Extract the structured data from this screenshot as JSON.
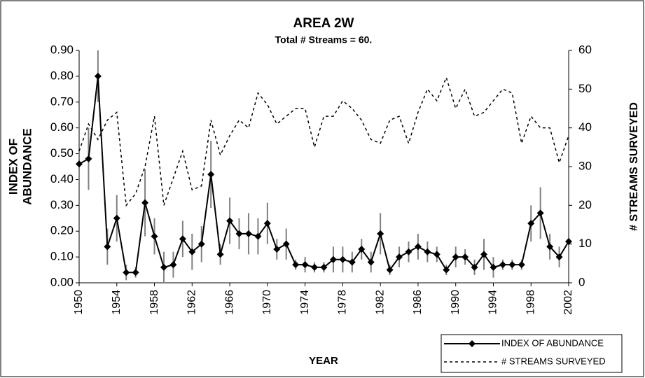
{
  "chart_data": {
    "type": "line",
    "title": "AREA 2W",
    "subtitle": "Total # Streams = 60.",
    "x_label": "YEAR",
    "y_label": [
      "INDEX OF",
      "ABUNDANCE"
    ],
    "y2_label": "# STREAMS SURVEYED",
    "x": [
      1950,
      1951,
      1952,
      1953,
      1954,
      1955,
      1956,
      1957,
      1958,
      1959,
      1960,
      1961,
      1962,
      1963,
      1964,
      1965,
      1966,
      1967,
      1968,
      1969,
      1970,
      1971,
      1972,
      1973,
      1974,
      1975,
      1976,
      1977,
      1978,
      1979,
      1980,
      1981,
      1982,
      1983,
      1984,
      1985,
      1986,
      1987,
      1988,
      1989,
      1990,
      1991,
      1992,
      1993,
      1994,
      1995,
      1996,
      1997,
      1998,
      1999,
      2000,
      2001,
      2002
    ],
    "xlim": [
      1950,
      2002
    ],
    "xticks": [
      1950,
      1954,
      1958,
      1962,
      1966,
      1970,
      1974,
      1978,
      1982,
      1986,
      1990,
      1994,
      1998,
      2002
    ],
    "ylim": [
      0,
      0.9
    ],
    "yticks": [
      {
        "value": 0,
        "label": "0.00"
      },
      {
        "value": 0.1,
        "label": "0.10"
      },
      {
        "value": 0.2,
        "label": "0.20"
      },
      {
        "value": 0.3,
        "label": "0.30"
      },
      {
        "value": 0.4,
        "label": "0.40"
      },
      {
        "value": 0.5,
        "label": "0.50"
      },
      {
        "value": 0.6,
        "label": "0.60"
      },
      {
        "value": 0.7,
        "label": "0.70"
      },
      {
        "value": 0.8,
        "label": "0.80"
      },
      {
        "value": 0.9,
        "label": "0.90"
      }
    ],
    "y2lim": [
      0,
      60
    ],
    "y2ticks": [
      0,
      10,
      20,
      30,
      40,
      50,
      60
    ],
    "legend": "bottom-right",
    "series": [
      {
        "name": "INDEX OF ABUNDANCE",
        "color": "#000000",
        "style": "solid",
        "marker": "diamond",
        "values": [
          0.46,
          0.48,
          0.8,
          0.14,
          0.25,
          0.04,
          0.04,
          0.31,
          0.18,
          0.06,
          0.07,
          0.17,
          0.12,
          0.15,
          0.42,
          0.11,
          0.24,
          0.19,
          0.19,
          0.18,
          0.23,
          0.13,
          0.15,
          0.07,
          0.07,
          0.06,
          0.06,
          0.09,
          0.09,
          0.08,
          0.13,
          0.08,
          0.19,
          0.05,
          0.1,
          0.12,
          0.14,
          0.12,
          0.11,
          0.05,
          0.1,
          0.1,
          0.06,
          0.11,
          0.06,
          0.07,
          0.07,
          0.07,
          0.23,
          0.27,
          0.14,
          0.1,
          0.16
        ],
        "errors": [
          0.15,
          0.12,
          0.1,
          0.07,
          0.09,
          0.03,
          0.02,
          0.13,
          0.07,
          0.06,
          0.05,
          0.07,
          0.07,
          0.07,
          0.13,
          0.04,
          0.09,
          0.06,
          0.08,
          0.07,
          0.08,
          0.04,
          0.06,
          0.02,
          0.03,
          0.02,
          0.02,
          0.05,
          0.05,
          0.04,
          0.04,
          0.04,
          0.08,
          0.02,
          0.04,
          0.04,
          0.05,
          0.04,
          0.03,
          0.02,
          0.04,
          0.03,
          0.03,
          0.06,
          0.04,
          0.02,
          0.02,
          0.02,
          0.07,
          0.1,
          0.05,
          0.04,
          0.03
        ],
        "error_color": "#808080"
      },
      {
        "name": "# STREAMS SURVEYED",
        "color": "#000000",
        "style": "dashed",
        "axis": "y2",
        "values": [
          34,
          41,
          37,
          42,
          44,
          20,
          23,
          30,
          43,
          20,
          27,
          34,
          24,
          25,
          42,
          33,
          38,
          42,
          40,
          49,
          46,
          41,
          43,
          45,
          45,
          35,
          43,
          43,
          47,
          45,
          42,
          37,
          36,
          42,
          43,
          36,
          44,
          50,
          47,
          53,
          45,
          50,
          43,
          44,
          47,
          50,
          49,
          36,
          43,
          40,
          40,
          31,
          38
        ]
      }
    ]
  }
}
